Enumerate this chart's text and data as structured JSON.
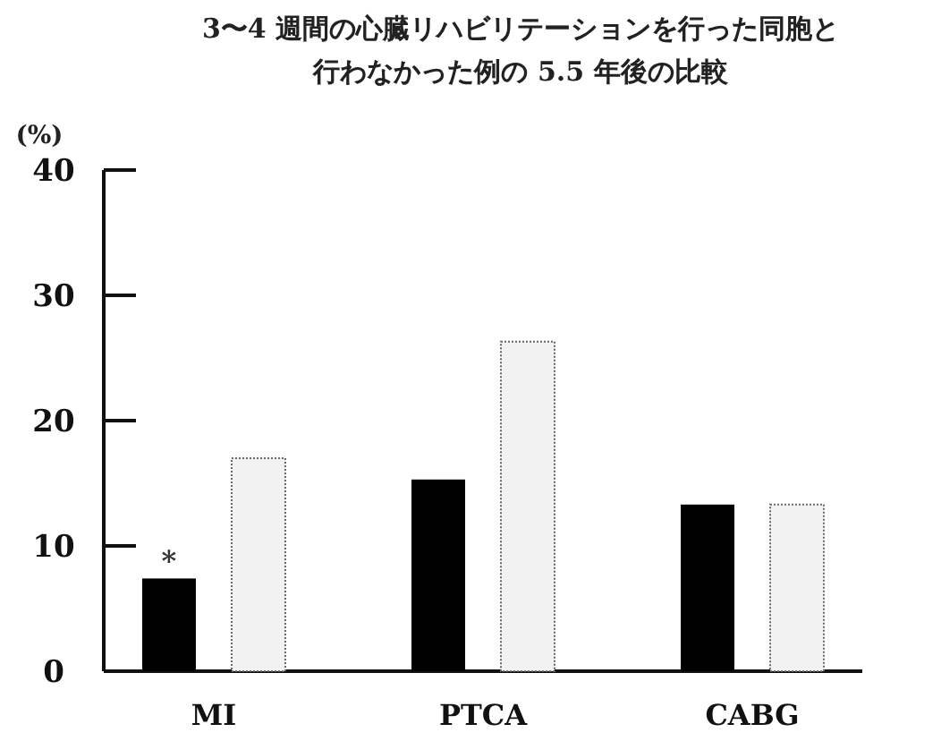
{
  "chart_data": {
    "type": "bar",
    "title": "3〜4 週間の心臓リハビリテーションを行った同胞と行わなかった例の 5.5 年後の比較",
    "ylabel": "(%)",
    "categories": [
      "MI",
      "PTCA",
      "CABG"
    ],
    "series": [
      {
        "color": "#000000",
        "values": [
          7.4,
          15.3,
          13.3
        ]
      },
      {
        "color": "#f2f2f2",
        "values": [
          17.0,
          26.3,
          13.3
        ]
      }
    ],
    "ylim": [
      0,
      40
    ],
    "yticks": [
      0,
      10,
      20,
      30,
      40
    ],
    "annotations": [
      "*"
    ],
    "grid": false
  }
}
